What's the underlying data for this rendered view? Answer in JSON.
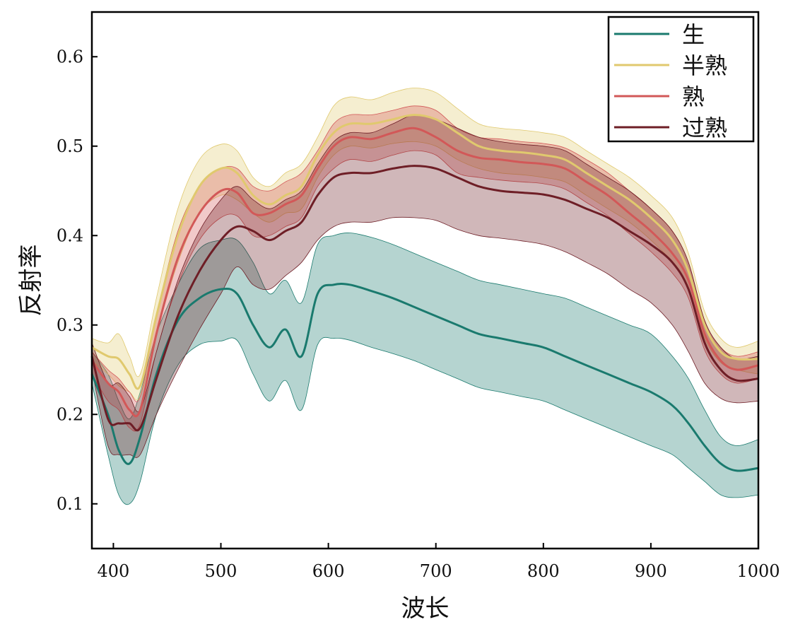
{
  "chart_data": {
    "type": "line",
    "title": "",
    "xlabel": "波长",
    "ylabel": "反射率",
    "xlim": [
      380,
      1000
    ],
    "ylim": [
      0.05,
      0.65
    ],
    "xticks": [
      400,
      500,
      600,
      700,
      800,
      900,
      1000
    ],
    "yticks": [
      0.1,
      0.2,
      0.3,
      0.4,
      0.5,
      0.6
    ],
    "xtick_labels": [
      "400",
      "500",
      "600",
      "700",
      "800",
      "900",
      "1000"
    ],
    "ytick_labels": [
      "0.1",
      "0.2",
      "0.3",
      "0.4",
      "0.5",
      "0.6"
    ],
    "grid": false,
    "legend_position": "top-right",
    "x": [
      380,
      395,
      405,
      415,
      425,
      440,
      460,
      480,
      500,
      515,
      530,
      545,
      560,
      575,
      590,
      605,
      620,
      640,
      660,
      680,
      700,
      720,
      740,
      760,
      780,
      800,
      820,
      840,
      860,
      880,
      900,
      920,
      935,
      950,
      965,
      980,
      1000
    ],
    "series": [
      {
        "name": "生",
        "color": "#1a7a6e",
        "mean": [
          0.245,
          0.2,
          0.16,
          0.145,
          0.175,
          0.245,
          0.305,
          0.33,
          0.34,
          0.335,
          0.3,
          0.275,
          0.295,
          0.265,
          0.335,
          0.345,
          0.345,
          0.338,
          0.33,
          0.32,
          0.31,
          0.3,
          0.29,
          0.285,
          0.28,
          0.275,
          0.265,
          0.255,
          0.245,
          0.235,
          0.225,
          0.21,
          0.19,
          0.165,
          0.145,
          0.137,
          0.14
        ],
        "upper": [
          0.27,
          0.245,
          0.215,
          0.195,
          0.225,
          0.29,
          0.345,
          0.385,
          0.395,
          0.395,
          0.37,
          0.335,
          0.35,
          0.325,
          0.39,
          0.4,
          0.403,
          0.398,
          0.39,
          0.38,
          0.37,
          0.36,
          0.35,
          0.345,
          0.34,
          0.335,
          0.33,
          0.32,
          0.31,
          0.3,
          0.29,
          0.265,
          0.24,
          0.205,
          0.175,
          0.165,
          0.172
        ],
        "lower": [
          0.235,
          0.155,
          0.11,
          0.1,
          0.125,
          0.2,
          0.255,
          0.278,
          0.282,
          0.283,
          0.245,
          0.215,
          0.238,
          0.205,
          0.278,
          0.285,
          0.283,
          0.275,
          0.268,
          0.26,
          0.25,
          0.24,
          0.23,
          0.225,
          0.22,
          0.215,
          0.205,
          0.195,
          0.185,
          0.175,
          0.165,
          0.155,
          0.14,
          0.125,
          0.11,
          0.107,
          0.11
        ]
      },
      {
        "name": "半熟",
        "color": "#e0c96e",
        "mean": [
          0.275,
          0.265,
          0.262,
          0.245,
          0.232,
          0.31,
          0.4,
          0.455,
          0.475,
          0.47,
          0.445,
          0.435,
          0.445,
          0.455,
          0.49,
          0.515,
          0.525,
          0.525,
          0.53,
          0.535,
          0.53,
          0.515,
          0.5,
          0.495,
          0.493,
          0.49,
          0.485,
          0.47,
          0.455,
          0.44,
          0.42,
          0.395,
          0.36,
          0.3,
          0.27,
          0.262,
          0.262
        ],
        "upper": [
          0.285,
          0.28,
          0.29,
          0.265,
          0.245,
          0.33,
          0.43,
          0.485,
          0.502,
          0.495,
          0.465,
          0.455,
          0.47,
          0.48,
          0.51,
          0.545,
          0.555,
          0.552,
          0.56,
          0.565,
          0.56,
          0.542,
          0.525,
          0.52,
          0.518,
          0.515,
          0.51,
          0.495,
          0.48,
          0.465,
          0.445,
          0.42,
          0.38,
          0.315,
          0.285,
          0.275,
          0.282
        ],
        "lower": [
          0.26,
          0.245,
          0.232,
          0.225,
          0.22,
          0.29,
          0.37,
          0.425,
          0.445,
          0.44,
          0.425,
          0.415,
          0.425,
          0.43,
          0.465,
          0.49,
          0.5,
          0.498,
          0.503,
          0.505,
          0.5,
          0.485,
          0.475,
          0.47,
          0.468,
          0.465,
          0.46,
          0.445,
          0.43,
          0.415,
          0.395,
          0.37,
          0.34,
          0.285,
          0.258,
          0.25,
          0.245
        ]
      },
      {
        "name": "熟",
        "color": "#d25858",
        "mean": [
          0.26,
          0.235,
          0.225,
          0.205,
          0.205,
          0.29,
          0.375,
          0.425,
          0.45,
          0.448,
          0.425,
          0.425,
          0.435,
          0.445,
          0.475,
          0.5,
          0.51,
          0.508,
          0.515,
          0.52,
          0.51,
          0.495,
          0.487,
          0.485,
          0.482,
          0.48,
          0.475,
          0.46,
          0.445,
          0.425,
          0.405,
          0.38,
          0.35,
          0.29,
          0.26,
          0.25,
          0.255
        ],
        "upper": [
          0.27,
          0.25,
          0.24,
          0.225,
          0.22,
          0.31,
          0.405,
          0.455,
          0.475,
          0.475,
          0.455,
          0.45,
          0.46,
          0.47,
          0.495,
          0.525,
          0.535,
          0.535,
          0.54,
          0.545,
          0.54,
          0.52,
          0.51,
          0.508,
          0.505,
          0.503,
          0.498,
          0.485,
          0.47,
          0.45,
          0.43,
          0.405,
          0.37,
          0.305,
          0.275,
          0.265,
          0.27
        ],
        "lower": [
          0.245,
          0.215,
          0.205,
          0.185,
          0.19,
          0.27,
          0.345,
          0.395,
          0.42,
          0.422,
          0.4,
          0.4,
          0.41,
          0.42,
          0.455,
          0.475,
          0.485,
          0.483,
          0.49,
          0.495,
          0.49,
          0.47,
          0.465,
          0.462,
          0.46,
          0.458,
          0.452,
          0.437,
          0.422,
          0.402,
          0.382,
          0.358,
          0.33,
          0.272,
          0.245,
          0.235,
          0.24
        ]
      },
      {
        "name": "过熟",
        "color": "#6e1e26",
        "mean": [
          0.265,
          0.195,
          0.19,
          0.19,
          0.185,
          0.24,
          0.31,
          0.36,
          0.395,
          0.41,
          0.405,
          0.395,
          0.405,
          0.415,
          0.445,
          0.465,
          0.47,
          0.47,
          0.475,
          0.478,
          0.475,
          0.465,
          0.455,
          0.45,
          0.448,
          0.446,
          0.44,
          0.43,
          0.42,
          0.405,
          0.39,
          0.37,
          0.34,
          0.28,
          0.25,
          0.238,
          0.24
        ],
        "upper": [
          0.28,
          0.235,
          0.235,
          0.22,
          0.205,
          0.27,
          0.35,
          0.405,
          0.44,
          0.455,
          0.44,
          0.43,
          0.44,
          0.45,
          0.48,
          0.505,
          0.515,
          0.515,
          0.525,
          0.535,
          0.53,
          0.52,
          0.51,
          0.505,
          0.502,
          0.5,
          0.495,
          0.48,
          0.465,
          0.45,
          0.43,
          0.405,
          0.37,
          0.305,
          0.275,
          0.262,
          0.265
        ],
        "lower": [
          0.25,
          0.165,
          0.155,
          0.155,
          0.155,
          0.2,
          0.25,
          0.295,
          0.335,
          0.365,
          0.345,
          0.34,
          0.355,
          0.37,
          0.395,
          0.41,
          0.415,
          0.415,
          0.42,
          0.42,
          0.417,
          0.407,
          0.4,
          0.397,
          0.394,
          0.39,
          0.382,
          0.37,
          0.357,
          0.34,
          0.325,
          0.3,
          0.27,
          0.235,
          0.218,
          0.213,
          0.215
        ]
      }
    ]
  }
}
